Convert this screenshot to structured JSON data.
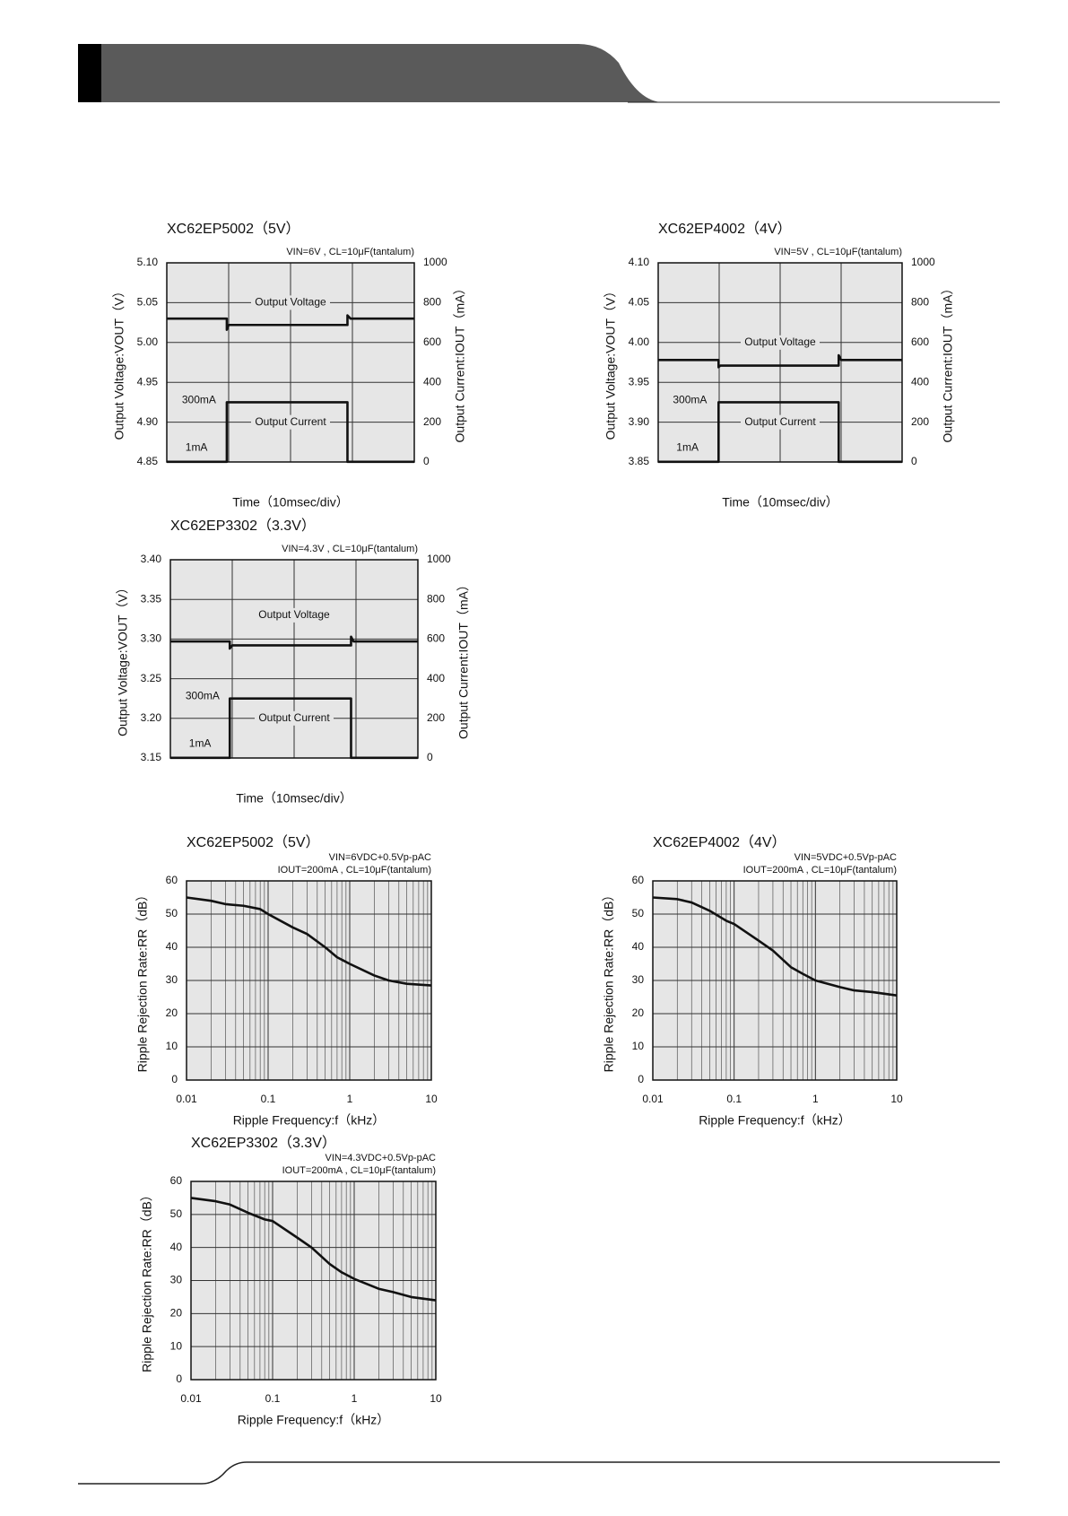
{
  "chart_data": [
    {
      "type": "line",
      "title": "XC62EP5002（5V）",
      "subtitle": "VIN=6V , CL=10μF(tantalum)",
      "x_label": "Time（10msec/div）",
      "y_label": "Output Voltage:VOUT（V）",
      "y2_label": "Output Current:IOUT（mA）",
      "annotations": [
        "Output Voltage",
        "Output Current",
        "300mA",
        "1mA"
      ],
      "x": [
        0,
        0.97,
        0.97,
        1.0,
        2.92,
        2.92,
        2.97,
        4
      ],
      "xlim": [
        0,
        4
      ],
      "xticks": [
        0,
        1,
        2,
        3,
        4
      ],
      "ylim": [
        4.85,
        5.1
      ],
      "yticks": [
        {
          "value": 4.85,
          "label": "4.85"
        },
        {
          "value": 4.9,
          "label": "4.90"
        },
        4.95,
        {
          "value": 5.0,
          "label": "5.00"
        },
        5.05,
        {
          "value": 5.1,
          "label": "5.10"
        }
      ],
      "y2lim": [
        0,
        1000
      ],
      "y2ticks": [
        0,
        200,
        400,
        600,
        800,
        1000
      ],
      "grid": true,
      "series": [
        {
          "name": "Output Voltage",
          "color": "#111111",
          "values": [
            5.03,
            5.03,
            5.016,
            5.022,
            5.022,
            5.034,
            5.03,
            5.03
          ]
        },
        {
          "name": "Output Current",
          "color": "#111111",
          "axis": "y2",
          "values": [
            1,
            1,
            300,
            300,
            300,
            1,
            1,
            1
          ]
        }
      ]
    },
    {
      "type": "line",
      "title": "XC62EP4002（4V）",
      "subtitle": "VIN=5V , CL=10μF(tantalum)",
      "x_label": "Time（10msec/div）",
      "y_label": "Output Voltage:VOUT（V）",
      "y2_label": "Output Current:IOUT（mA）",
      "annotations": [
        "Output Voltage",
        "Output Current",
        "300mA",
        "1mA"
      ],
      "x": [
        0,
        0.99,
        0.99,
        1.02,
        2.96,
        2.96,
        3.0,
        4
      ],
      "xlim": [
        0,
        4
      ],
      "xticks": [
        0,
        1,
        2,
        3,
        4
      ],
      "ylim": [
        3.85,
        4.1
      ],
      "yticks": [
        3.85,
        {
          "value": 3.9,
          "label": "3.90"
        },
        3.95,
        {
          "value": 4.0,
          "label": "4.00"
        },
        4.05,
        {
          "value": 4.1,
          "label": "4.10"
        }
      ],
      "y2lim": [
        0,
        1000
      ],
      "y2ticks": [
        0,
        200,
        400,
        600,
        800,
        1000
      ],
      "grid": true,
      "series": [
        {
          "name": "Output Voltage",
          "color": "#111111",
          "values": [
            3.978,
            3.978,
            3.969,
            3.971,
            3.971,
            3.984,
            3.978,
            3.978
          ]
        },
        {
          "name": "Output Current",
          "color": "#111111",
          "axis": "y2",
          "values": [
            1,
            1,
            300,
            300,
            300,
            1,
            1,
            1
          ]
        }
      ]
    },
    {
      "type": "line",
      "title": "XC62EP3302（3.3V）",
      "subtitle": "VIN=4.3V , CL=10μF(tantalum)",
      "x_label": "Time（10msec/div）",
      "y_label": "Output Voltage:VOUT（V）",
      "y2_label": "Output Current:IOUT（mA）",
      "annotations": [
        "Output Voltage",
        "Output Current",
        "300mA",
        "1mA"
      ],
      "x": [
        0,
        0.96,
        0.96,
        1.0,
        2.92,
        2.92,
        2.96,
        4
      ],
      "xlim": [
        0,
        4
      ],
      "xticks": [
        0,
        1,
        2,
        3,
        4
      ],
      "ylim": [
        3.15,
        3.4
      ],
      "yticks": [
        3.15,
        {
          "value": 3.2,
          "label": "3.20"
        },
        3.25,
        {
          "value": 3.3,
          "label": "3.30"
        },
        3.35,
        {
          "value": 3.4,
          "label": "3.40"
        }
      ],
      "y2lim": [
        0,
        1000
      ],
      "y2ticks": [
        0,
        200,
        400,
        600,
        800,
        1000
      ],
      "grid": true,
      "series": [
        {
          "name": "Output Voltage",
          "color": "#111111",
          "values": [
            3.297,
            3.297,
            3.288,
            3.292,
            3.292,
            3.303,
            3.297,
            3.297
          ]
        },
        {
          "name": "Output Current",
          "color": "#111111",
          "axis": "y2",
          "values": [
            1,
            1,
            300,
            300,
            300,
            1,
            1,
            1
          ]
        }
      ]
    },
    {
      "type": "line",
      "title": "XC62EP5002（5V）",
      "subtitle": [
        "VIN=6VDC+0.5Vp-pAC",
        "IOUT=200mA , CL=10μF(tantalum)"
      ],
      "x_label": "Ripple Frequency:f（kHz）",
      "y_label": "Ripple Rejection Rate:RR（dB）",
      "x": [
        0.01,
        0.02,
        0.03,
        0.05,
        0.08,
        0.1,
        0.2,
        0.3,
        0.5,
        0.7,
        1,
        2,
        3,
        5,
        10
      ],
      "xlim": [
        0.01,
        10
      ],
      "xticks": [
        0.01,
        0.1,
        1,
        10
      ],
      "x_log": true,
      "ylim": [
        0,
        60
      ],
      "yticks": [
        0,
        10,
        20,
        30,
        40,
        50,
        60
      ],
      "grid": true,
      "series": [
        {
          "name": "RR",
          "color": "#111111",
          "values": [
            55,
            54,
            53,
            52.5,
            51.5,
            50,
            46,
            44,
            40,
            37,
            35,
            31.5,
            30,
            29,
            28.5
          ]
        }
      ]
    },
    {
      "type": "line",
      "title": "XC62EP4002（4V）",
      "subtitle": [
        "VIN=5VDC+0.5Vp-pAC",
        "IOUT=200mA , CL=10μF(tantalum)"
      ],
      "x_label": "Ripple Frequency:f（kHz）",
      "y_label": "Ripple Rejection Rate:RR（dB）",
      "x": [
        0.01,
        0.02,
        0.03,
        0.05,
        0.08,
        0.1,
        0.2,
        0.3,
        0.5,
        0.7,
        1,
        2,
        3,
        5,
        10
      ],
      "xlim": [
        0.01,
        10
      ],
      "xticks": [
        0.01,
        0.1,
        1,
        10
      ],
      "x_log": true,
      "ylim": [
        0,
        60
      ],
      "yticks": [
        0,
        10,
        20,
        30,
        40,
        50,
        60
      ],
      "grid": true,
      "series": [
        {
          "name": "RR",
          "color": "#111111",
          "values": [
            55,
            54.5,
            53.5,
            51,
            48,
            47,
            42,
            39,
            34,
            32,
            30,
            28,
            27,
            26.5,
            25.5
          ]
        }
      ]
    },
    {
      "type": "line",
      "title": "XC62EP3302（3.3V）",
      "subtitle": [
        "VIN=4.3VDC+0.5Vp-pAC",
        "IOUT=200mA , CL=10μF(tantalum)"
      ],
      "x_label": "Ripple Frequency:f（kHz）",
      "y_label": "Ripple Rejection Rate:RR（dB）",
      "x": [
        0.01,
        0.02,
        0.03,
        0.05,
        0.08,
        0.1,
        0.2,
        0.3,
        0.5,
        0.7,
        1,
        2,
        3,
        5,
        10
      ],
      "xlim": [
        0.01,
        10
      ],
      "xticks": [
        0.01,
        0.1,
        1,
        10
      ],
      "x_log": true,
      "ylim": [
        0,
        60
      ],
      "yticks": [
        0,
        10,
        20,
        30,
        40,
        50,
        60
      ],
      "grid": true,
      "series": [
        {
          "name": "RR",
          "color": "#111111",
          "values": [
            55,
            54,
            53,
            50.5,
            48.5,
            48,
            43,
            40,
            35,
            32.5,
            30.5,
            27.5,
            26.5,
            25,
            24
          ]
        }
      ]
    }
  ]
}
